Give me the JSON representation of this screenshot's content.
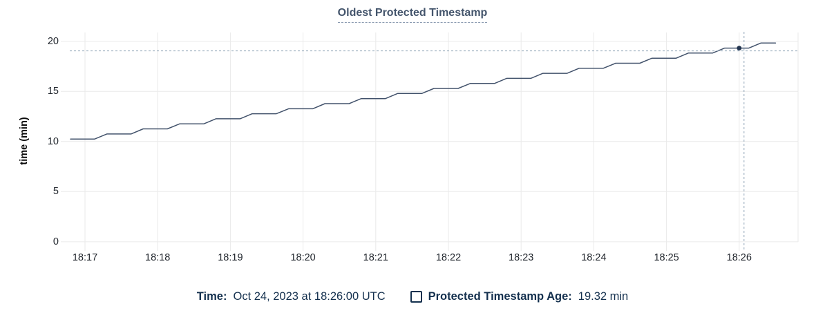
{
  "chart_data": {
    "type": "line",
    "title": "Oldest Protected Timestamp",
    "ylabel": "time (min)",
    "grid": true,
    "legend_position": "bottom",
    "x_axis": {
      "tick_labels": [
        "18:17",
        "18:18",
        "18:19",
        "18:20",
        "18:21",
        "18:22",
        "18:23",
        "18:24",
        "18:25",
        "18:26"
      ],
      "tick_minutes_from_start": [
        0,
        1,
        2,
        3,
        4,
        5,
        6,
        7,
        8,
        9
      ],
      "start_label": "18:17",
      "end_label": "18:26"
    },
    "y_axis": {
      "tick_labels": [
        "0",
        "5",
        "10",
        "15",
        "20"
      ],
      "tick_values": [
        0,
        5,
        10,
        15,
        20
      ],
      "range": [
        0,
        20
      ],
      "unit": "min"
    },
    "series": [
      {
        "name": "Protected Timestamp Age",
        "color": "#42526b",
        "points_seconds_after_18_17": [
          [
            -12,
            10.25
          ],
          [
            8,
            10.25
          ],
          [
            18,
            10.75
          ],
          [
            38,
            10.75
          ],
          [
            48,
            11.26
          ],
          [
            68,
            11.26
          ],
          [
            78,
            11.76
          ],
          [
            98,
            11.76
          ],
          [
            108,
            12.27
          ],
          [
            128,
            12.27
          ],
          [
            138,
            12.77
          ],
          [
            158,
            12.77
          ],
          [
            168,
            13.27
          ],
          [
            188,
            13.27
          ],
          [
            198,
            13.78
          ],
          [
            218,
            13.78
          ],
          [
            228,
            14.28
          ],
          [
            248,
            14.28
          ],
          [
            258,
            14.79
          ],
          [
            278,
            14.79
          ],
          [
            288,
            15.29
          ],
          [
            308,
            15.29
          ],
          [
            318,
            15.79
          ],
          [
            338,
            15.79
          ],
          [
            348,
            16.3
          ],
          [
            368,
            16.3
          ],
          [
            378,
            16.8
          ],
          [
            398,
            16.8
          ],
          [
            408,
            17.31
          ],
          [
            428,
            17.31
          ],
          [
            438,
            17.81
          ],
          [
            458,
            17.81
          ],
          [
            468,
            18.31
          ],
          [
            488,
            18.31
          ],
          [
            498,
            18.82
          ],
          [
            518,
            18.82
          ],
          [
            528,
            19.32
          ],
          [
            548,
            19.32
          ],
          [
            558,
            19.83
          ],
          [
            570,
            19.83
          ]
        ]
      }
    ],
    "hover": {
      "seconds_after_18_17": 540,
      "value": 19.32,
      "time_label": "18:26:00"
    }
  },
  "tooltip_legend": {
    "time_label": "Time:",
    "time_value": "Oct 24, 2023 at 18:26:00 UTC",
    "series_label": "Protected Timestamp Age:",
    "series_value": "19.32 min",
    "checkbox_icon": "square-outline"
  },
  "colors": {
    "background": "#ffffff",
    "title_text": "#44556c",
    "title_underline": "#8a9ab0",
    "axis_tick_text": "#21262d",
    "grid": "#eaeaea",
    "series_line": "#42526b",
    "hover_dot": "#243650",
    "crosshair": "#93a7b9",
    "legend_text": "#14304e"
  }
}
